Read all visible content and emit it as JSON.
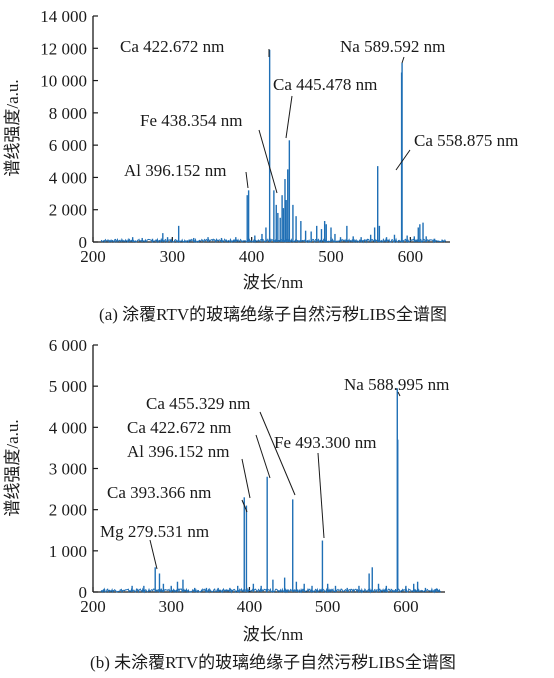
{
  "chart_data": [
    {
      "id": "a",
      "type": "line",
      "caption": "(a)  涂覆RTV的玻璃绝缘子自然污秽LIBS全谱图",
      "xlabel": "波长/nm",
      "ylabel": "谱线强度/a.u.",
      "xlim": [
        200,
        650
      ],
      "ylim": [
        0,
        14000
      ],
      "x_ticks": [
        200,
        300,
        400,
        500,
        600
      ],
      "y_ticks": [
        0,
        2000,
        4000,
        6000,
        8000,
        10000,
        12000,
        14000
      ],
      "x_tick_labels": [
        "200",
        "300",
        "400",
        "500",
        "600"
      ],
      "y_tick_labels": [
        "0",
        "2 000",
        "4 000",
        "6 000",
        "8 000",
        "10 000",
        "12 000",
        "14 000"
      ],
      "color": "#1f6fb5",
      "peaks": [
        {
          "x": 250,
          "y": 300
        },
        {
          "x": 262,
          "y": 250
        },
        {
          "x": 275,
          "y": 200
        },
        {
          "x": 288,
          "y": 550
        },
        {
          "x": 294,
          "y": 300
        },
        {
          "x": 308,
          "y": 1000
        },
        {
          "x": 327,
          "y": 250
        },
        {
          "x": 345,
          "y": 300
        },
        {
          "x": 362,
          "y": 250
        },
        {
          "x": 380,
          "y": 300
        },
        {
          "x": 394.4,
          "y": 2900
        },
        {
          "x": 396.152,
          "y": 3200
        },
        {
          "x": 404,
          "y": 400
        },
        {
          "x": 413,
          "y": 500
        },
        {
          "x": 418,
          "y": 900
        },
        {
          "x": 422.672,
          "y": 11900
        },
        {
          "x": 428,
          "y": 3200
        },
        {
          "x": 431,
          "y": 2300
        },
        {
          "x": 433,
          "y": 1800
        },
        {
          "x": 436,
          "y": 1500
        },
        {
          "x": 438.354,
          "y": 2900
        },
        {
          "x": 440,
          "y": 2100
        },
        {
          "x": 442,
          "y": 3900
        },
        {
          "x": 443.5,
          "y": 2600
        },
        {
          "x": 445.478,
          "y": 4500
        },
        {
          "x": 447.5,
          "y": 6300
        },
        {
          "x": 452,
          "y": 2300
        },
        {
          "x": 456,
          "y": 1600
        },
        {
          "x": 462,
          "y": 1300
        },
        {
          "x": 468,
          "y": 700
        },
        {
          "x": 475,
          "y": 650
        },
        {
          "x": 482,
          "y": 1000
        },
        {
          "x": 488,
          "y": 800
        },
        {
          "x": 492,
          "y": 1300
        },
        {
          "x": 494,
          "y": 1100
        },
        {
          "x": 500,
          "y": 900
        },
        {
          "x": 505,
          "y": 500
        },
        {
          "x": 512,
          "y": 300
        },
        {
          "x": 520,
          "y": 1000
        },
        {
          "x": 528,
          "y": 350
        },
        {
          "x": 538,
          "y": 300
        },
        {
          "x": 550,
          "y": 450
        },
        {
          "x": 555,
          "y": 900
        },
        {
          "x": 558.875,
          "y": 4700
        },
        {
          "x": 561,
          "y": 1000
        },
        {
          "x": 570,
          "y": 300
        },
        {
          "x": 580,
          "y": 450
        },
        {
          "x": 588.995,
          "y": 10500
        },
        {
          "x": 589.592,
          "y": 11100
        },
        {
          "x": 596,
          "y": 400
        },
        {
          "x": 605,
          "y": 350
        },
        {
          "x": 610,
          "y": 900
        },
        {
          "x": 612,
          "y": 1100
        },
        {
          "x": 616,
          "y": 1200
        },
        {
          "x": 620,
          "y": 350
        },
        {
          "x": 630,
          "y": 200
        },
        {
          "x": 640,
          "y": 150
        }
      ],
      "annotations": [
        {
          "text": "Ca 422.672 nm",
          "x": 422.672,
          "y": 11900
        },
        {
          "text": "Na 589.592 nm",
          "x": 589.592,
          "y": 11100
        },
        {
          "text": "Ca 445.478 nm",
          "x": 445.478,
          "y": 4500
        },
        {
          "text": "Fe 438.354 nm",
          "x": 438.354,
          "y": 2900
        },
        {
          "text": "Ca 558.875 nm",
          "x": 558.875,
          "y": 4700
        },
        {
          "text": "Al 396.152 nm",
          "x": 396.152,
          "y": 3200
        }
      ]
    },
    {
      "id": "b",
      "type": "line",
      "caption": "(b)  未涂覆RTV的玻璃绝缘子自然污秽LIBS全谱图",
      "xlabel": "波长/nm",
      "ylabel": "谱线强度/a.u.",
      "xlim": [
        200,
        650
      ],
      "ylim": [
        0,
        6000
      ],
      "x_ticks": [
        200,
        300,
        400,
        500,
        600
      ],
      "y_ticks": [
        0,
        1000,
        2000,
        3000,
        4000,
        5000,
        6000
      ],
      "x_tick_labels": [
        "200",
        "300",
        "400",
        "500",
        "600"
      ],
      "y_tick_labels": [
        "0",
        "1 000",
        "2 000",
        "3 000",
        "4 000",
        "5 000",
        "6 000"
      ],
      "color": "#1f6fb5",
      "peaks": [
        {
          "x": 250,
          "y": 150
        },
        {
          "x": 265,
          "y": 150
        },
        {
          "x": 279.531,
          "y": 600
        },
        {
          "x": 285,
          "y": 450
        },
        {
          "x": 290,
          "y": 200
        },
        {
          "x": 300,
          "y": 150
        },
        {
          "x": 308,
          "y": 250
        },
        {
          "x": 315,
          "y": 300
        },
        {
          "x": 330,
          "y": 100
        },
        {
          "x": 345,
          "y": 100
        },
        {
          "x": 360,
          "y": 100
        },
        {
          "x": 375,
          "y": 100
        },
        {
          "x": 385,
          "y": 150
        },
        {
          "x": 393.366,
          "y": 2300
        },
        {
          "x": 396.152,
          "y": 2100
        },
        {
          "x": 405,
          "y": 200
        },
        {
          "x": 415,
          "y": 150
        },
        {
          "x": 422.672,
          "y": 2800
        },
        {
          "x": 430,
          "y": 300
        },
        {
          "x": 445,
          "y": 350
        },
        {
          "x": 455.329,
          "y": 2250
        },
        {
          "x": 460,
          "y": 250
        },
        {
          "x": 470,
          "y": 200
        },
        {
          "x": 480,
          "y": 150
        },
        {
          "x": 493.3,
          "y": 1250
        },
        {
          "x": 500,
          "y": 200
        },
        {
          "x": 510,
          "y": 150
        },
        {
          "x": 525,
          "y": 100
        },
        {
          "x": 540,
          "y": 150
        },
        {
          "x": 553,
          "y": 450
        },
        {
          "x": 557,
          "y": 600
        },
        {
          "x": 565,
          "y": 200
        },
        {
          "x": 575,
          "y": 150
        },
        {
          "x": 588.995,
          "y": 4950
        },
        {
          "x": 589.592,
          "y": 3700
        },
        {
          "x": 600,
          "y": 150
        },
        {
          "x": 610,
          "y": 200
        },
        {
          "x": 615,
          "y": 250
        },
        {
          "x": 625,
          "y": 100
        },
        {
          "x": 640,
          "y": 80
        }
      ],
      "annotations": [
        {
          "text": "Na 588.995 nm",
          "x": 588.995,
          "y": 4950
        },
        {
          "text": "Ca 455.329 nm",
          "x": 455.329,
          "y": 2250
        },
        {
          "text": "Ca 422.672 nm",
          "x": 422.672,
          "y": 2800
        },
        {
          "text": "Fe 493.300 nm",
          "x": 493.3,
          "y": 1250
        },
        {
          "text": "Al 396.152 nm",
          "x": 396.152,
          "y": 2100
        },
        {
          "text": "Ca 393.366 nm",
          "x": 393.366,
          "y": 2300
        },
        {
          "text": "Mg 279.531 nm",
          "x": 279.531,
          "y": 600
        }
      ]
    }
  ]
}
